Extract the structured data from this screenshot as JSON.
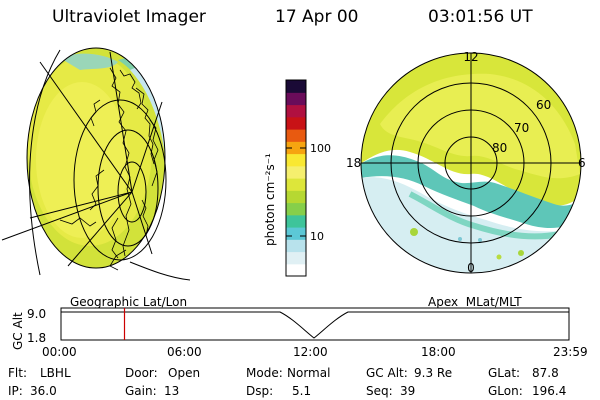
{
  "header": {
    "instrument": "Ultraviolet Imager",
    "date": "17 Apr 00",
    "time": "03:01:56 UT"
  },
  "left_panel": {
    "projection_label": "Geographic Lat/Lon"
  },
  "right_panel": {
    "projection_label": "Apex  MLat/MLT",
    "mlt_labels": {
      "top": "12",
      "left": "18",
      "right": "6",
      "bottom": "0"
    },
    "mlat_labels": [
      "60",
      "70",
      "80"
    ]
  },
  "colorbar": {
    "unit_label": "photon cm⁻²s⁻¹",
    "tick_labels": [
      "100",
      "10"
    ],
    "scale": "log",
    "colors": [
      "#ffffff",
      "#e0f0f4",
      "#b8e2ec",
      "#5cc8d6",
      "#3ec49a",
      "#86cf4a",
      "#b6d832",
      "#dde63a",
      "#f5ef6e",
      "#f9e832",
      "#f6a410",
      "#e85a10",
      "#c81216",
      "#b01040",
      "#6a0c5a",
      "#1a0a36"
    ]
  },
  "timeline": {
    "axis_label": "GC Alt",
    "y_ticks": [
      "9.0",
      "1.8"
    ],
    "x_ticks": [
      "00:00",
      "06:00",
      "12:00",
      "18:00",
      "23:59"
    ],
    "current_time_fraction": 0.125,
    "marker_color": "#cc0000"
  },
  "status": {
    "flt_label": "Flt:",
    "flt_value": "LBHL",
    "ip_label": "IP:",
    "ip_value": "36.0",
    "door_label": "Door:",
    "door_value": "Open",
    "gain_label": "Gain:",
    "gain_value": "13",
    "mode_label": "Mode:",
    "mode_value": "Normal",
    "dsp_label": "Dsp:",
    "dsp_value": "5.1",
    "gcalt_label": "GC Alt:",
    "gcalt_value": "9.3 Re",
    "seq_label": "Seq:",
    "seq_value": "39",
    "glat_label": "GLat:",
    "glat_value": "87.8",
    "glon_label": "GLon:",
    "glon_value": "196.4"
  }
}
